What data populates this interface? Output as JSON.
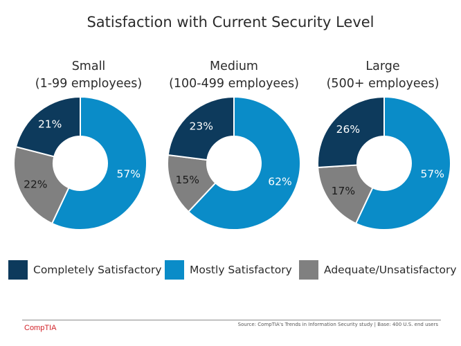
{
  "title": "Satisfaction with Current Security Level",
  "colors": {
    "completely": "#0d3a5c",
    "mostly": "#0a8cc8",
    "adequate": "#808080",
    "label_dark_bg": "#ffffff",
    "label_light_bg": "#1a1a1a"
  },
  "legend": {
    "completely": "Completely Satisfactory",
    "mostly": "Mostly Satisfactory",
    "adequate": "Adequate/Unsatisfactory"
  },
  "chart_data": [
    {
      "type": "pie",
      "variant": "donut",
      "title_line1": "Small",
      "title_line2": "(1-99 employees)",
      "categories": [
        "Completely Satisfactory",
        "Mostly Satisfactory",
        "Adequate/Unsatisfactory"
      ],
      "values": [
        21,
        57,
        22
      ],
      "labels": [
        "21%",
        "57%",
        "22%"
      ]
    },
    {
      "type": "pie",
      "variant": "donut",
      "title_line1": "Medium",
      "title_line2": "(100-499 employees)",
      "categories": [
        "Completely Satisfactory",
        "Mostly Satisfactory",
        "Adequate/Unsatisfactory"
      ],
      "values": [
        23,
        62,
        15
      ],
      "labels": [
        "23%",
        "62%",
        "15%"
      ]
    },
    {
      "type": "pie",
      "variant": "donut",
      "title_line1": "Large",
      "title_line2": "(500+ employees)",
      "categories": [
        "Completely Satisfactory",
        "Mostly Satisfactory",
        "Adequate/Unsatisfactory"
      ],
      "values": [
        26,
        57,
        17
      ],
      "labels": [
        "26%",
        "57%",
        "17%"
      ]
    }
  ],
  "footer": {
    "source": "Source: CompTIA's Trends in Information Security study  |  Base: 400 U.S. end users",
    "logo": "CompTIA"
  }
}
